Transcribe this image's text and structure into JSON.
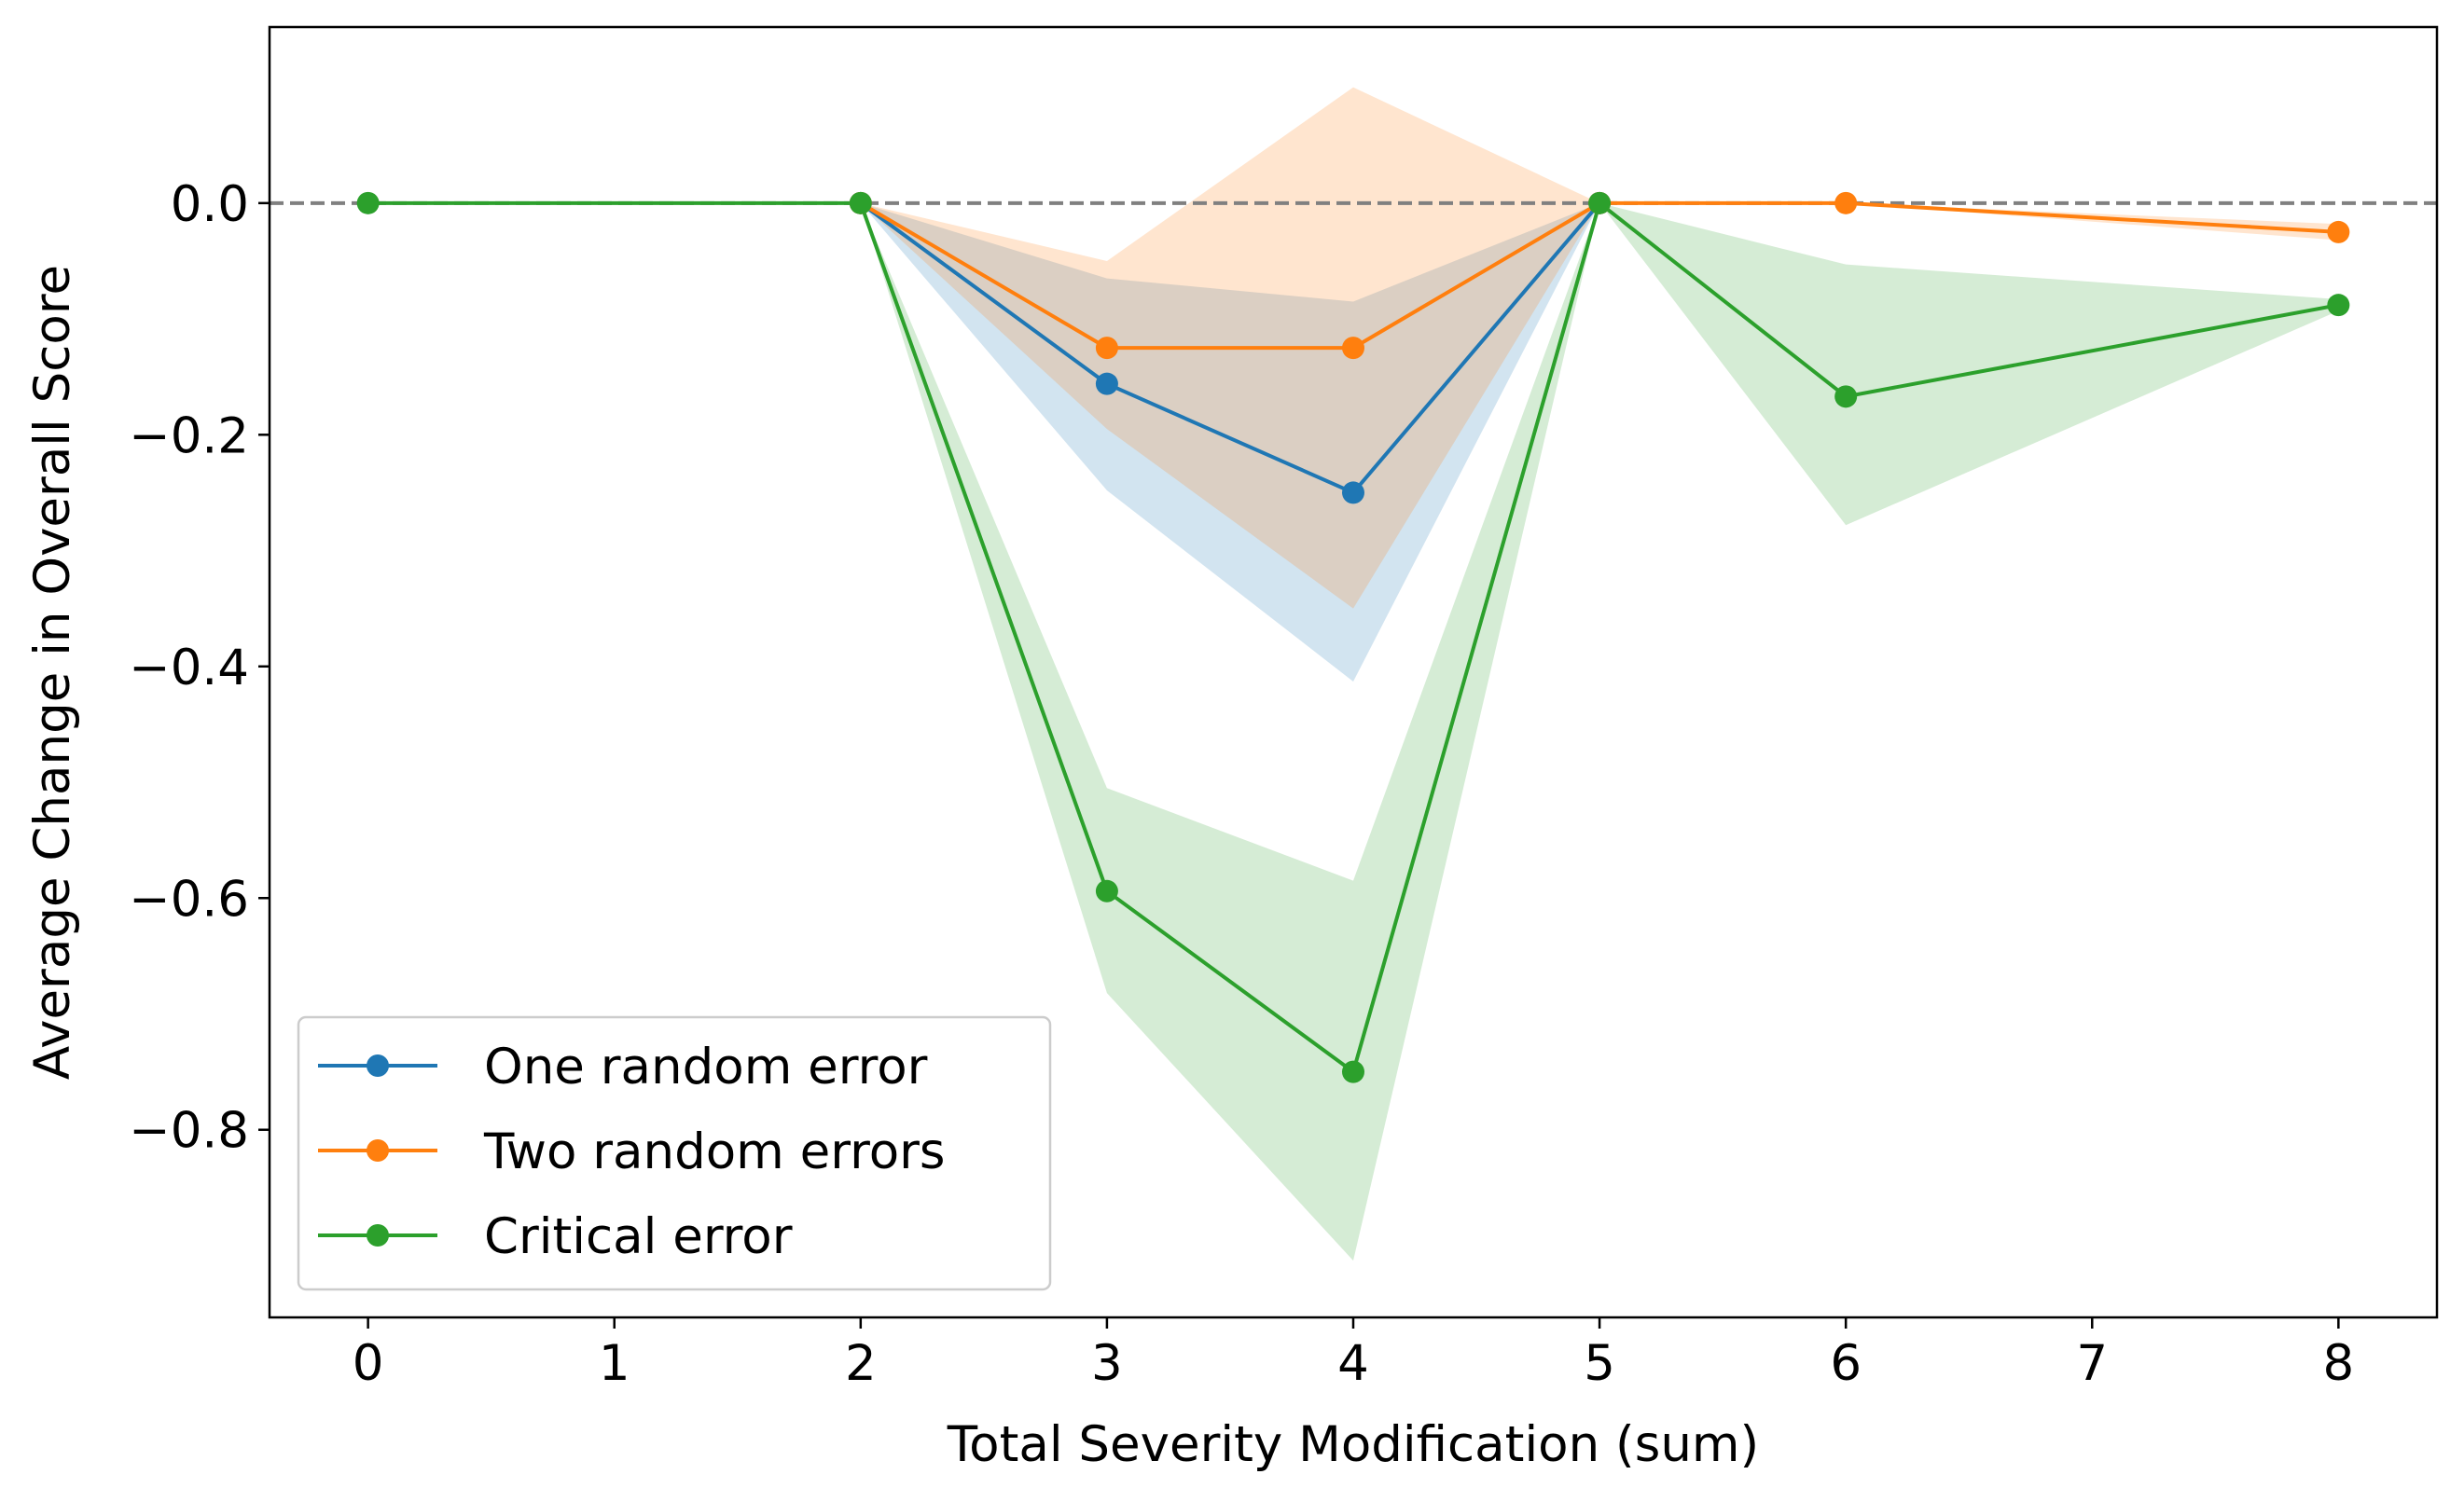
{
  "chart_data": {
    "type": "line",
    "title": "",
    "xlabel": "Total Severity Modification (sum)",
    "ylabel": "Average Change in Overall Score",
    "xlim": [
      -0.4,
      8.4
    ],
    "ylim": [
      -0.962,
      0.152
    ],
    "xticks": [
      0,
      1,
      2,
      3,
      4,
      5,
      6,
      7,
      8
    ],
    "xtick_labels": [
      "0",
      "1",
      "2",
      "3",
      "4",
      "5",
      "6",
      "7",
      "8"
    ],
    "yticks": [
      0.0,
      -0.2,
      -0.4,
      -0.6,
      -0.8
    ],
    "ytick_labels": [
      "0.0",
      "−0.2",
      "−0.4",
      "−0.6",
      "−0.8"
    ],
    "reference_line": {
      "y": 0,
      "style": "dashed",
      "color": "#808080"
    },
    "grid": false,
    "legend_position": "lower-left",
    "series": [
      {
        "name": "One random error",
        "color": "#1f77b4",
        "x": [
          2,
          3,
          4,
          5
        ],
        "y": [
          0.0,
          -0.156,
          -0.25,
          0.0
        ],
        "band_upper": [
          0.0,
          -0.065,
          -0.085,
          0.0
        ],
        "band_lower": [
          0.0,
          -0.248,
          -0.413,
          0.0
        ]
      },
      {
        "name": "Two random errors",
        "color": "#ff7f0e",
        "x": [
          2,
          3,
          4,
          5,
          6,
          8
        ],
        "y": [
          0.0,
          -0.125,
          -0.125,
          0.0,
          0.0,
          -0.025
        ],
        "band_upper": [
          0.0,
          -0.05,
          0.1,
          0.0,
          0.0,
          -0.018
        ],
        "band_lower": [
          0.0,
          -0.195,
          -0.35,
          0.0,
          0.0,
          -0.032
        ]
      },
      {
        "name": "Critical error",
        "color": "#2ca02c",
        "x": [
          0,
          2,
          3,
          4,
          5,
          6,
          8
        ],
        "y": [
          0.0,
          0.0,
          -0.594,
          -0.75,
          0.0,
          -0.167,
          -0.088
        ],
        "band_upper": [
          0.0,
          0.0,
          -0.505,
          -0.585,
          0.0,
          -0.053,
          -0.083
        ],
        "band_lower": [
          0.0,
          0.0,
          -0.682,
          -0.913,
          0.0,
          -0.278,
          -0.093
        ]
      }
    ]
  }
}
